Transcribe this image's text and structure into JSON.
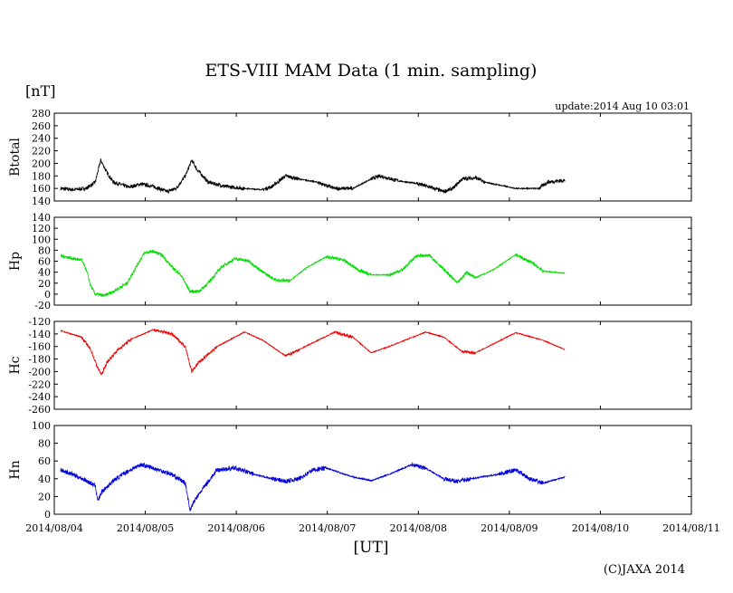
{
  "chart_data": {
    "type": "line",
    "title": "ETS-VIII MAM Data (1 min. sampling)",
    "unit_label": "[nT]",
    "update": "update:2014 Aug 10 03:01",
    "xlabel": "[UT]",
    "copyright": "(C)JAXA 2014",
    "x_unit": "days since 2014/08/04 00:00",
    "xlim": [
      0,
      7
    ],
    "x_ticks": [
      "2014/08/04",
      "2014/08/05",
      "2014/08/06",
      "2014/08/07",
      "2014/08/08",
      "2014/08/09",
      "2014/08/10",
      "2014/08/11"
    ],
    "panels": [
      {
        "name": "Btotal",
        "color": "#000000",
        "ylim": [
          140,
          280
        ],
        "yticks": [
          140,
          160,
          180,
          200,
          220,
          240,
          260,
          280
        ],
        "noise": 3,
        "points": [
          [
            0.07,
            160
          ],
          [
            0.2,
            158
          ],
          [
            0.35,
            160
          ],
          [
            0.45,
            170
          ],
          [
            0.51,
            205
          ],
          [
            0.58,
            185
          ],
          [
            0.65,
            170
          ],
          [
            0.82,
            162
          ],
          [
            0.95,
            167
          ],
          [
            1.09,
            163
          ],
          [
            1.24,
            155
          ],
          [
            1.34,
            160
          ],
          [
            1.44,
            180
          ],
          [
            1.51,
            205
          ],
          [
            1.57,
            190
          ],
          [
            1.69,
            170
          ],
          [
            1.89,
            163
          ],
          [
            2.09,
            160
          ],
          [
            2.29,
            158
          ],
          [
            2.39,
            163
          ],
          [
            2.54,
            180
          ],
          [
            2.69,
            175
          ],
          [
            2.89,
            170
          ],
          [
            3.08,
            160
          ],
          [
            3.28,
            160
          ],
          [
            3.48,
            175
          ],
          [
            3.58,
            180
          ],
          [
            3.78,
            172
          ],
          [
            3.98,
            168
          ],
          [
            4.13,
            162
          ],
          [
            4.28,
            155
          ],
          [
            4.38,
            160
          ],
          [
            4.48,
            175
          ],
          [
            4.63,
            177
          ],
          [
            4.73,
            170
          ],
          [
            5.07,
            160
          ],
          [
            5.32,
            160
          ],
          [
            5.42,
            170
          ],
          [
            5.61,
            173
          ]
        ]
      },
      {
        "name": "Hp",
        "color": "#00dd00",
        "ylim": [
          -20,
          140
        ],
        "yticks": [
          -20,
          0,
          20,
          40,
          60,
          80,
          100,
          120,
          140
        ],
        "noise": 3,
        "points": [
          [
            0.07,
            70
          ],
          [
            0.2,
            65
          ],
          [
            0.3,
            62
          ],
          [
            0.35,
            45
          ],
          [
            0.4,
            15
          ],
          [
            0.45,
            0
          ],
          [
            0.55,
            -3
          ],
          [
            0.65,
            5
          ],
          [
            0.8,
            20
          ],
          [
            0.9,
            50
          ],
          [
            0.99,
            75
          ],
          [
            1.09,
            78
          ],
          [
            1.19,
            70
          ],
          [
            1.29,
            50
          ],
          [
            1.39,
            35
          ],
          [
            1.49,
            5
          ],
          [
            1.59,
            5
          ],
          [
            1.69,
            20
          ],
          [
            1.84,
            50
          ],
          [
            1.99,
            65
          ],
          [
            2.14,
            60
          ],
          [
            2.29,
            40
          ],
          [
            2.44,
            25
          ],
          [
            2.59,
            25
          ],
          [
            2.79,
            50
          ],
          [
            2.99,
            68
          ],
          [
            3.18,
            62
          ],
          [
            3.33,
            45
          ],
          [
            3.48,
            35
          ],
          [
            3.68,
            35
          ],
          [
            3.83,
            45
          ],
          [
            3.98,
            70
          ],
          [
            4.13,
            70
          ],
          [
            4.28,
            45
          ],
          [
            4.43,
            20
          ],
          [
            4.53,
            40
          ],
          [
            4.63,
            30
          ],
          [
            4.83,
            45
          ],
          [
            5.07,
            72
          ],
          [
            5.27,
            55
          ],
          [
            5.37,
            42
          ],
          [
            5.61,
            38
          ]
        ]
      },
      {
        "name": "Hc",
        "color": "#ee0000",
        "ylim": [
          -260,
          -120
        ],
        "yticks": [
          -260,
          -240,
          -220,
          -200,
          -180,
          -160,
          -140,
          -120
        ],
        "noise": 2.5,
        "points": [
          [
            0.07,
            -135
          ],
          [
            0.3,
            -145
          ],
          [
            0.4,
            -165
          ],
          [
            0.48,
            -195
          ],
          [
            0.52,
            -205
          ],
          [
            0.58,
            -185
          ],
          [
            0.7,
            -165
          ],
          [
            0.85,
            -148
          ],
          [
            1.09,
            -133
          ],
          [
            1.29,
            -140
          ],
          [
            1.44,
            -160
          ],
          [
            1.51,
            -200
          ],
          [
            1.59,
            -185
          ],
          [
            1.79,
            -160
          ],
          [
            2.09,
            -137
          ],
          [
            2.29,
            -150
          ],
          [
            2.54,
            -175
          ],
          [
            2.69,
            -165
          ],
          [
            3.08,
            -137
          ],
          [
            3.28,
            -145
          ],
          [
            3.48,
            -170
          ],
          [
            3.68,
            -160
          ],
          [
            4.08,
            -137
          ],
          [
            4.28,
            -145
          ],
          [
            4.48,
            -168
          ],
          [
            4.63,
            -170
          ],
          [
            5.07,
            -138
          ],
          [
            5.37,
            -150
          ],
          [
            5.61,
            -165
          ]
        ]
      },
      {
        "name": "Hn",
        "color": "#0000dd",
        "ylim": [
          0,
          100
        ],
        "yticks": [
          0,
          20,
          40,
          60,
          80,
          100
        ],
        "noise": 2.5,
        "points": [
          [
            0.07,
            50
          ],
          [
            0.2,
            45
          ],
          [
            0.35,
            38
          ],
          [
            0.45,
            32
          ],
          [
            0.48,
            15
          ],
          [
            0.52,
            25
          ],
          [
            0.65,
            38
          ],
          [
            0.8,
            48
          ],
          [
            0.95,
            56
          ],
          [
            1.09,
            52
          ],
          [
            1.29,
            45
          ],
          [
            1.44,
            35
          ],
          [
            1.49,
            5
          ],
          [
            1.54,
            15
          ],
          [
            1.64,
            30
          ],
          [
            1.79,
            50
          ],
          [
            1.99,
            52
          ],
          [
            2.19,
            45
          ],
          [
            2.39,
            40
          ],
          [
            2.54,
            37
          ],
          [
            2.69,
            40
          ],
          [
            2.84,
            50
          ],
          [
            2.99,
            52
          ],
          [
            3.28,
            42
          ],
          [
            3.48,
            38
          ],
          [
            3.68,
            45
          ],
          [
            3.93,
            56
          ],
          [
            4.08,
            52
          ],
          [
            4.28,
            40
          ],
          [
            4.43,
            37
          ],
          [
            4.58,
            40
          ],
          [
            4.88,
            45
          ],
          [
            5.07,
            50
          ],
          [
            5.22,
            40
          ],
          [
            5.37,
            35
          ],
          [
            5.61,
            42
          ]
        ]
      }
    ]
  }
}
